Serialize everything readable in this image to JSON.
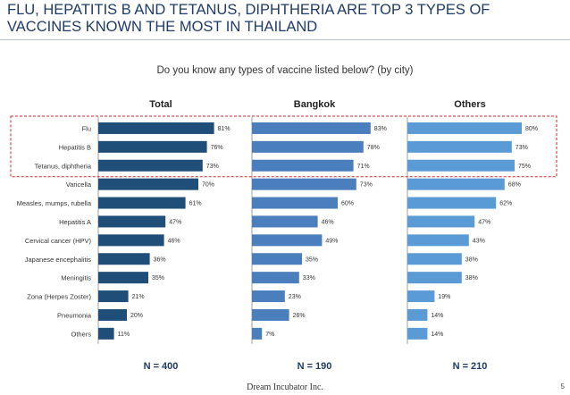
{
  "slide": {
    "title": "FLU, HEPATITIS B AND TETANUS, DIPHTHERIA ARE TOP 3 TYPES OF VACCINES KNOWN THE MOST IN THAILAND",
    "subtitle": "Do you know any types of vaccine listed below? (by city)",
    "footer": "Dream Incubator Inc.",
    "page_number": "5"
  },
  "colors": {
    "total": "#1f4e79",
    "bangkok": "#4a7ebd",
    "others": "#5b9bd5",
    "highlight": "#d9262c"
  },
  "chart_data": {
    "type": "bar",
    "orientation": "horizontal",
    "categories": [
      "Flu",
      "Hepatitis B",
      "Tetanus, diphtheria",
      "Varicella",
      "Measles, mumps, rubella",
      "Hepatitis A",
      "Cervical cancer (HPV)",
      "Japanese encephalitis",
      "Meningitis",
      "Zona (Herpes Zoster)",
      "Pneumonia",
      "Others"
    ],
    "panels": [
      {
        "name": "Total",
        "n_label": "N = 400",
        "color_key": "total",
        "values": [
          81,
          76,
          73,
          70,
          61,
          47,
          46,
          36,
          35,
          21,
          20,
          11
        ],
        "data_labels": [
          "81%",
          "76%",
          "73%",
          "70%",
          "61%",
          "47%",
          "46%",
          "36%",
          "35%",
          "21%",
          "20%",
          "11%"
        ]
      },
      {
        "name": "Bangkok",
        "n_label": "N = 190",
        "color_key": "bangkok",
        "values": [
          83,
          78,
          71,
          73,
          60,
          46,
          49,
          35,
          33,
          23,
          26,
          7
        ],
        "data_labels": [
          "83%",
          "78%",
          "71%",
          "73%",
          "60%",
          "46%",
          "49%",
          "35%",
          "33%",
          "23%",
          "26%",
          "7%"
        ]
      },
      {
        "name": "Others",
        "n_label": "N = 210",
        "color_key": "others",
        "values": [
          80,
          73,
          75,
          68,
          62,
          47,
          43,
          38,
          38,
          19,
          14,
          14
        ],
        "data_labels": [
          "80%",
          "73%",
          "75%",
          "68%",
          "62%",
          "47%",
          "43%",
          "38%",
          "38%",
          "19%",
          "14%",
          "14%"
        ]
      }
    ],
    "xlim": [
      0,
      100
    ],
    "grid": false,
    "legend": "none",
    "highlighted_categories": [
      "Flu",
      "Hepatitis B",
      "Tetanus, diphtheria"
    ]
  }
}
